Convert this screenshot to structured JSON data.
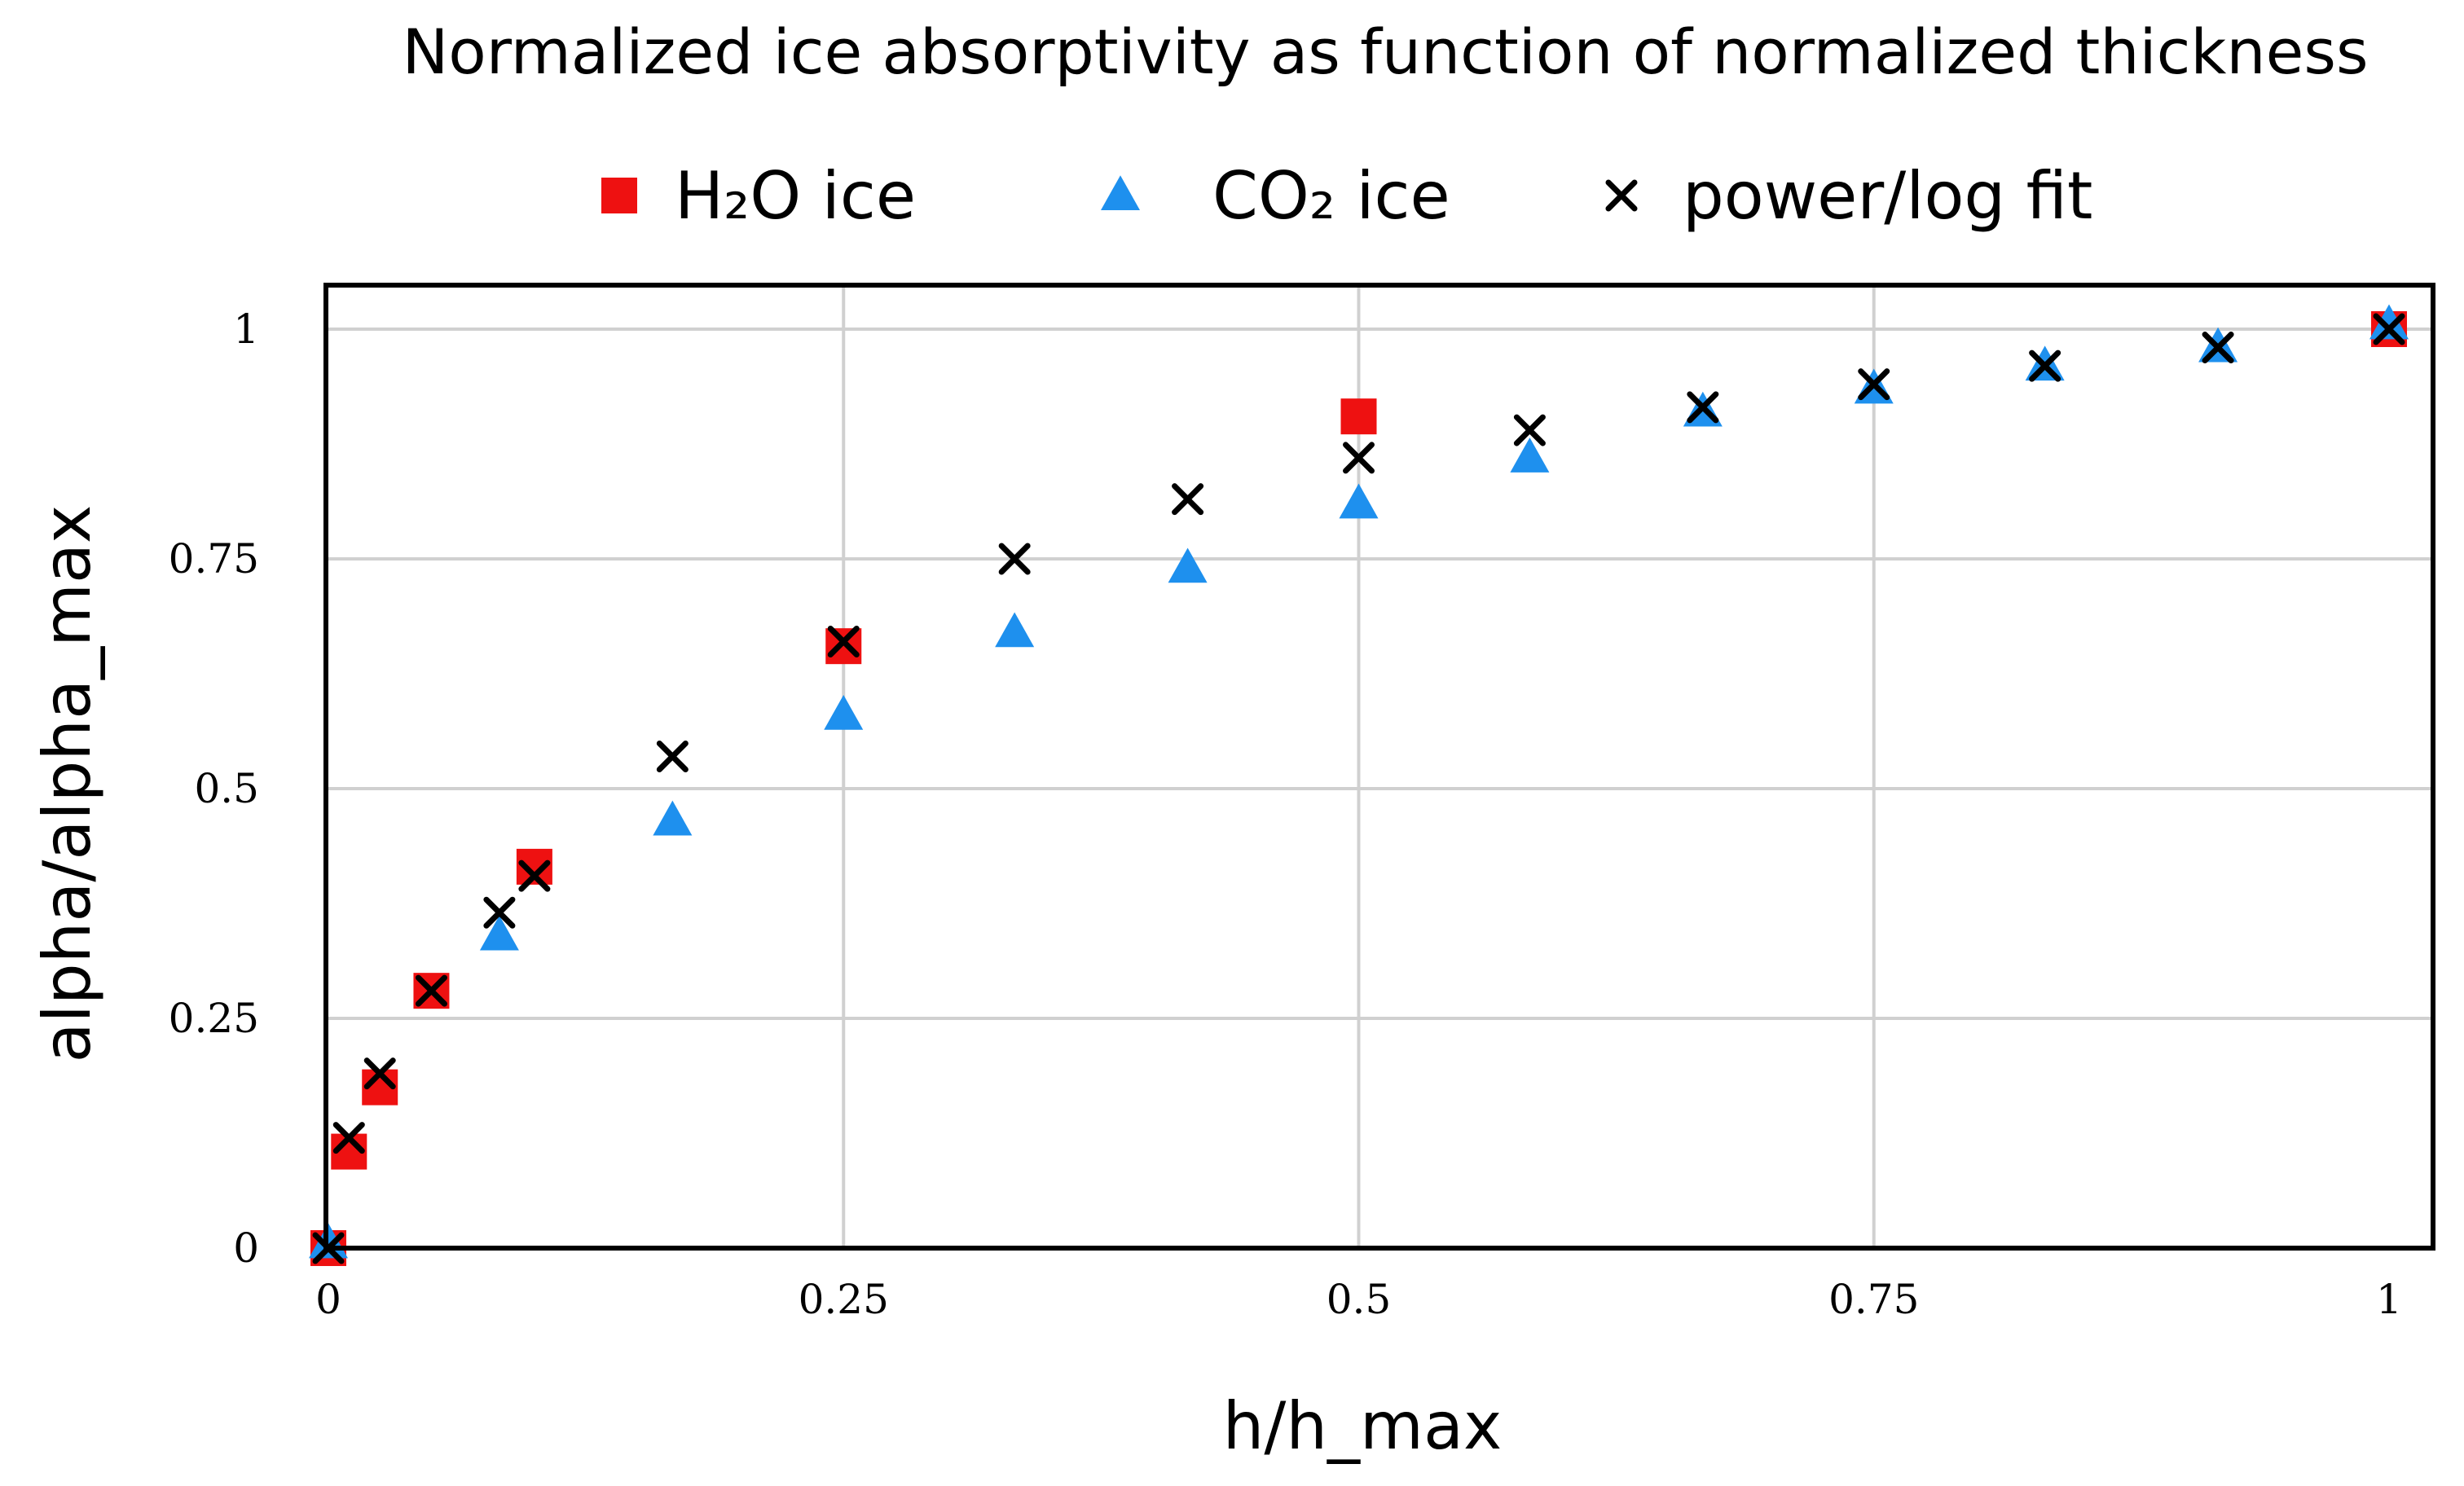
{
  "chart_data": {
    "type": "scatter",
    "title": "Normalized ice absorptivity as function of normalized thickness",
    "xlabel": "h/h_max",
    "ylabel": "alpha/alpha_max",
    "xlim": [
      0,
      1
    ],
    "ylim": [
      0,
      1
    ],
    "x_ticks": [
      "0",
      "0.25",
      "0.5",
      "0.75",
      "1"
    ],
    "y_ticks": [
      "0",
      "0.25",
      "0.5",
      "0.75",
      "1"
    ],
    "grid": true,
    "legend_position": "top",
    "series": [
      {
        "name": "H₂O ice",
        "marker": "square",
        "color": "#ee1111",
        "points": [
          [
            0,
            0
          ],
          [
            0.01,
            0.105
          ],
          [
            0.025,
            0.175
          ],
          [
            0.05,
            0.28
          ],
          [
            0.1,
            0.415
          ],
          [
            0.25,
            0.655
          ],
          [
            0.5,
            0.905
          ],
          [
            1,
            1
          ]
        ]
      },
      {
        "name": "CO₂ ice",
        "marker": "triangle",
        "color": "#1e90ee",
        "points": [
          [
            0,
            0.005
          ],
          [
            0.083,
            0.34
          ],
          [
            0.167,
            0.465
          ],
          [
            0.25,
            0.58
          ],
          [
            0.333,
            0.67
          ],
          [
            0.417,
            0.74
          ],
          [
            0.5,
            0.81
          ],
          [
            0.583,
            0.86
          ],
          [
            0.667,
            0.91
          ],
          [
            0.75,
            0.935
          ],
          [
            0.833,
            0.96
          ],
          [
            0.917,
            0.98
          ],
          [
            1,
            1.005
          ]
        ]
      },
      {
        "name": "power/log fit",
        "marker": "x",
        "color": "#000000",
        "points": [
          [
            0,
            0
          ],
          [
            0.01,
            0.12
          ],
          [
            0.025,
            0.19
          ],
          [
            0.05,
            0.28
          ],
          [
            0.083,
            0.365
          ],
          [
            0.1,
            0.405
          ],
          [
            0.167,
            0.535
          ],
          [
            0.25,
            0.66
          ],
          [
            0.333,
            0.75
          ],
          [
            0.417,
            0.815
          ],
          [
            0.5,
            0.86
          ],
          [
            0.583,
            0.89
          ],
          [
            0.667,
            0.915
          ],
          [
            0.75,
            0.94
          ],
          [
            0.833,
            0.96
          ],
          [
            0.917,
            0.98
          ],
          [
            1,
            1
          ]
        ]
      }
    ]
  }
}
